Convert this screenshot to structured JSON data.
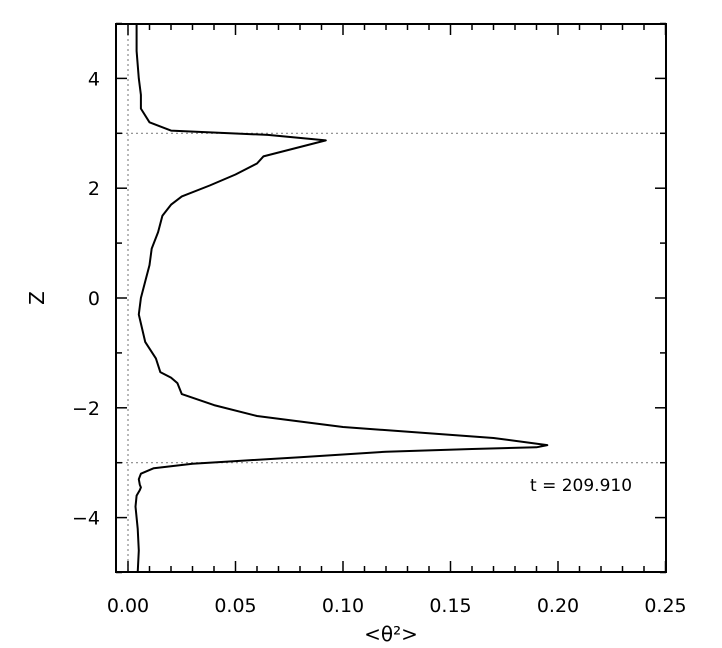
{
  "chart_data": {
    "type": "line",
    "title": "",
    "xlabel": "<θ²>",
    "ylabel": "Z",
    "xlim": [
      0,
      0.25
    ],
    "ylim": [
      -5,
      5
    ],
    "x_ticks": [
      0.0,
      0.05,
      0.1,
      0.15,
      0.2,
      0.25
    ],
    "x_tick_labels": [
      "0.00",
      "0.05",
      "0.10",
      "0.15",
      "0.20",
      "0.25"
    ],
    "y_ticks": [
      -4,
      -2,
      0,
      2,
      4
    ],
    "y_tick_labels": [
      "−4",
      "−2",
      "0",
      "2",
      "4"
    ],
    "grid": false,
    "reference_lines": {
      "horizontal_dotted_at_z": [
        3,
        -3
      ],
      "vertical_dotted_at_x": [
        0
      ]
    },
    "annotation": "t = 209.910",
    "series": [
      {
        "x": [
          0.0045,
          0.005,
          0.0045,
          0.0035,
          0.004,
          0.0055,
          0.006,
          0.0055,
          0.005,
          0.006,
          0.012,
          0.03,
          0.05,
          0.08,
          0.12,
          0.16,
          0.19,
          0.195,
          0.17,
          0.1,
          0.06,
          0.04,
          0.025,
          0.023,
          0.02,
          0.015,
          0.013,
          0.008,
          0.005,
          0.006,
          0.008,
          0.01,
          0.011,
          0.014,
          0.016,
          0.02,
          0.025,
          0.038,
          0.05,
          0.06,
          0.063,
          0.08,
          0.092,
          0.065,
          0.02,
          0.01,
          0.006,
          0.006,
          0.005,
          0.004,
          0.004
        ],
        "y": [
          -5.0,
          -4.6,
          -4.2,
          -3.8,
          -3.6,
          -3.5,
          -3.45,
          -3.4,
          -3.3,
          -3.2,
          -3.1,
          -3.02,
          -2.97,
          -2.9,
          -2.8,
          -2.75,
          -2.72,
          -2.68,
          -2.55,
          -2.35,
          -2.15,
          -1.95,
          -1.75,
          -1.55,
          -1.45,
          -1.35,
          -1.1,
          -0.8,
          -0.3,
          0.0,
          0.3,
          0.6,
          0.9,
          1.2,
          1.5,
          1.7,
          1.85,
          2.05,
          2.25,
          2.45,
          2.58,
          2.75,
          2.87,
          2.97,
          3.05,
          3.2,
          3.45,
          3.7,
          4.0,
          4.5,
          5.0
        ]
      }
    ]
  }
}
